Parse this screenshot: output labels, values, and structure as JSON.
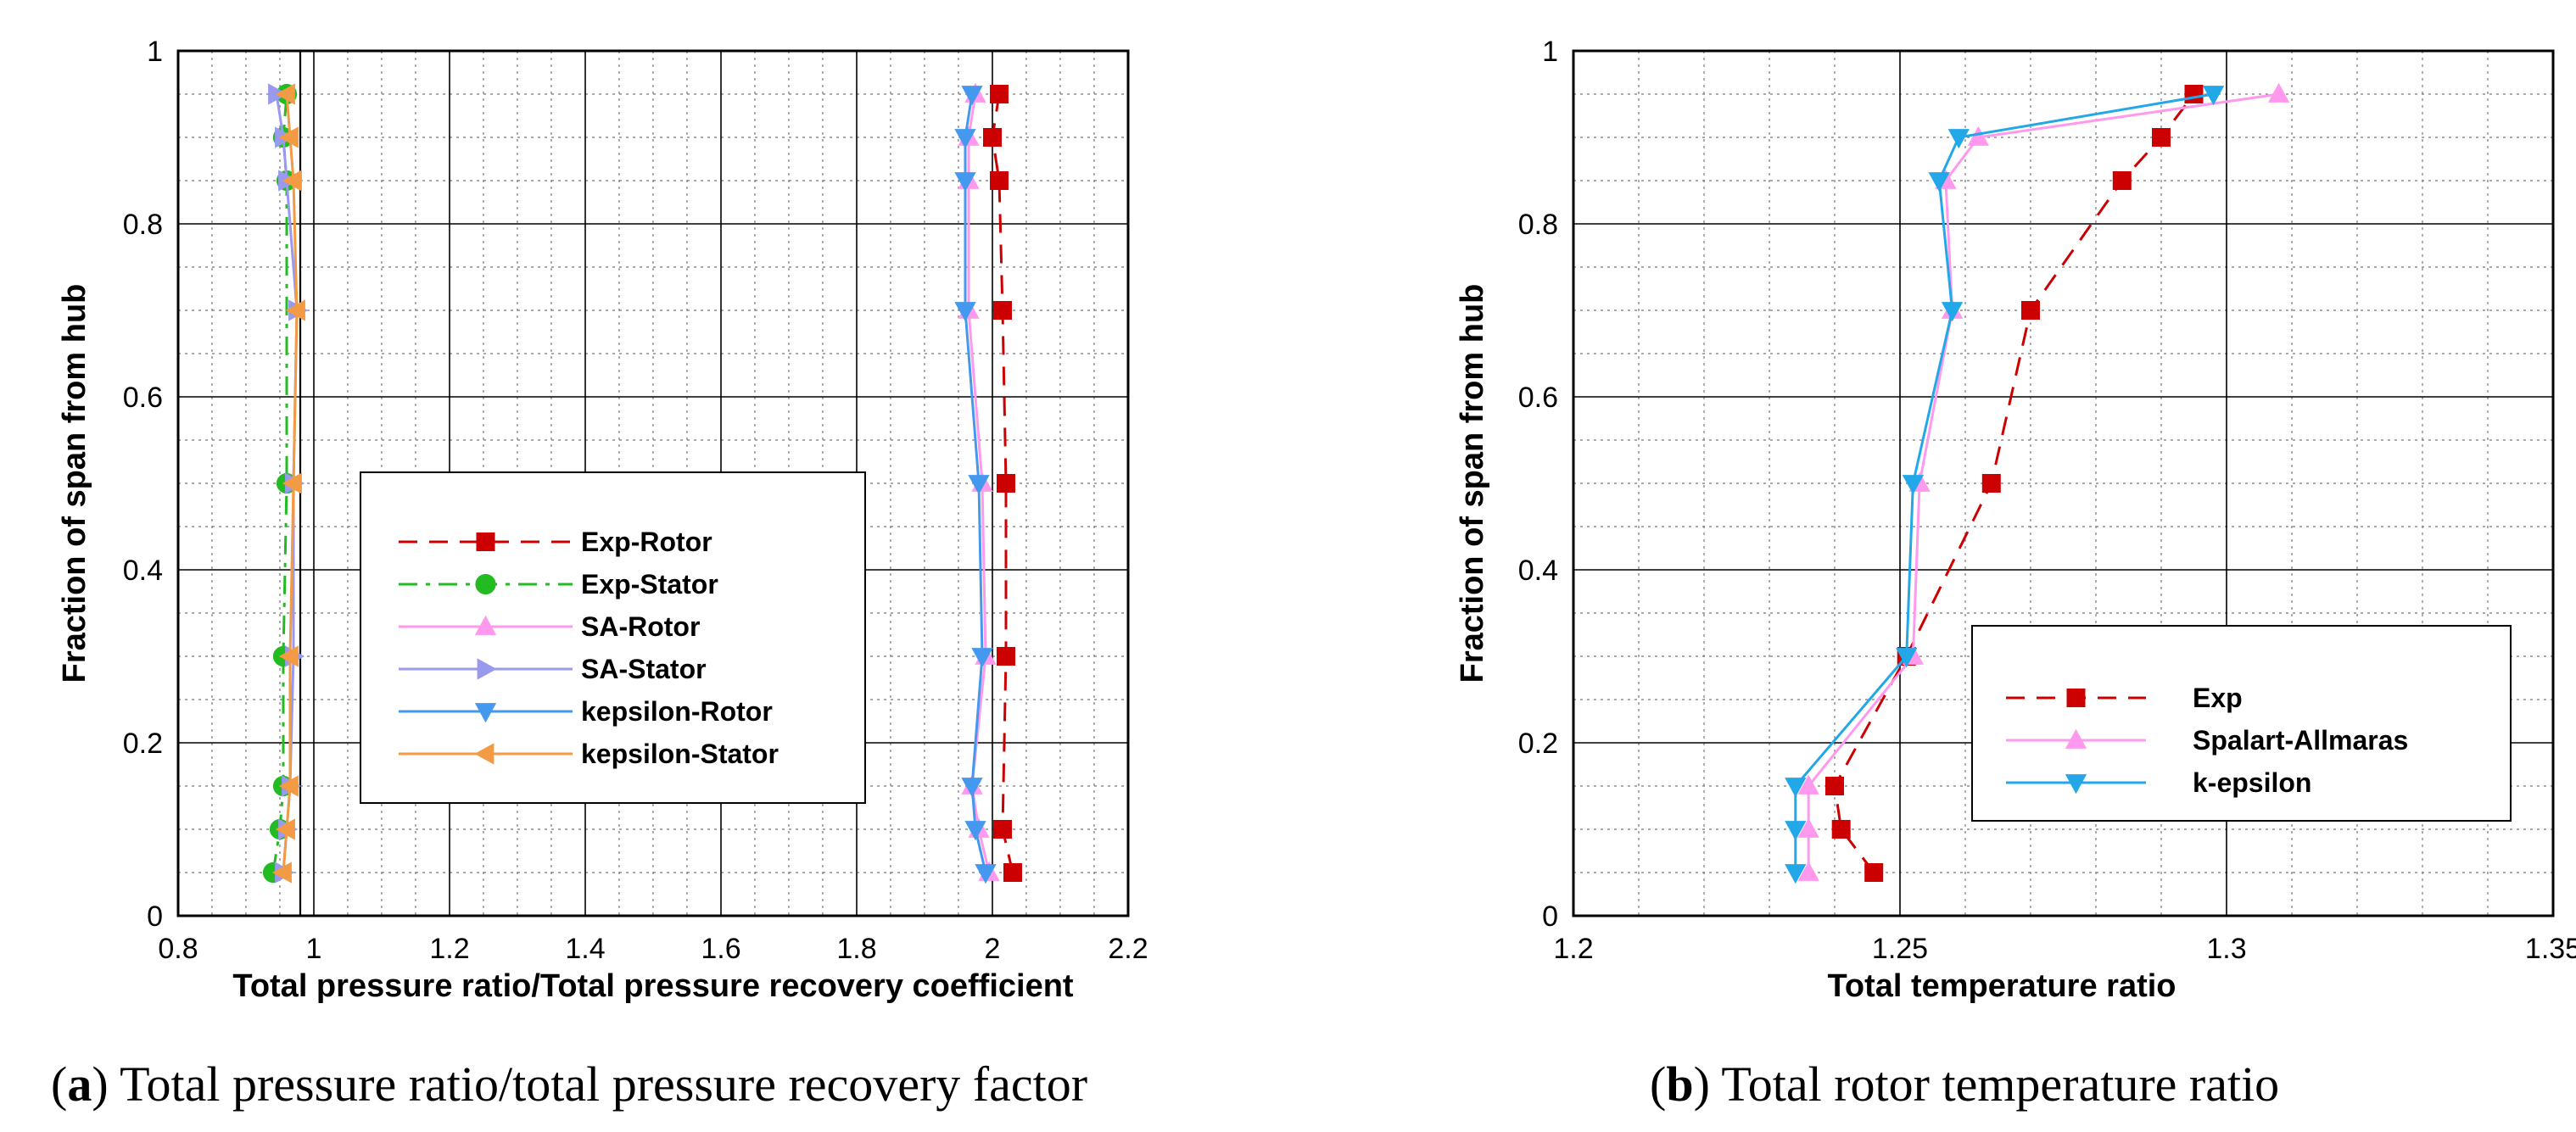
{
  "chart_data": [
    {
      "type": "line",
      "caption_letter": "a",
      "caption_text": ") Total pressure ratio/total pressure recovery factor",
      "caption_open": "(",
      "xlabel": "Total pressure ratio/Total pressure recovery coefficient",
      "ylabel": "Fraction of span from hub",
      "xlim": [
        0.8,
        2.2
      ],
      "ylim": [
        0,
        1
      ],
      "xticks": [
        0.8,
        1,
        1.2,
        1.4,
        1.6,
        1.8,
        2,
        2.2
      ],
      "xtick_labels": [
        "0.8",
        "1",
        "1.2",
        "1.4",
        "1.6",
        "1.8",
        "2",
        "2.2"
      ],
      "yticks": [
        0,
        0.2,
        0.4,
        0.6,
        0.8,
        1
      ],
      "ytick_labels": [
        "0",
        "0.2",
        "0.4",
        "0.6",
        "0.8",
        "1"
      ],
      "grid": true,
      "legend_position": "center",
      "series": [
        {
          "name": "Exp-Rotor",
          "color": "#cc0000",
          "marker": "square",
          "dash": "dashed",
          "x": [
            2.03,
            2.015,
            2.02,
            2.02,
            2.015,
            2.01,
            2.0,
            2.01
          ],
          "y": [
            0.05,
            0.1,
            0.3,
            0.5,
            0.7,
            0.85,
            0.9,
            0.95
          ]
        },
        {
          "name": "Exp-Stator",
          "color": "#22bb22",
          "marker": "circle",
          "dash": "dashdot",
          "x": [
            0.94,
            0.95,
            0.955,
            0.955,
            0.96,
            0.96,
            0.955,
            0.96
          ],
          "y": [
            0.05,
            0.1,
            0.15,
            0.3,
            0.5,
            0.85,
            0.9,
            0.95
          ]
        },
        {
          "name": "SA-Rotor",
          "color": "#ff99ee",
          "marker": "triangle-up",
          "dash": "solid",
          "x": [
            1.995,
            1.98,
            1.97,
            1.99,
            1.985,
            1.965,
            1.965,
            1.965,
            1.975
          ],
          "y": [
            0.05,
            0.1,
            0.15,
            0.3,
            0.5,
            0.7,
            0.85,
            0.9,
            0.95
          ]
        },
        {
          "name": "SA-Stator",
          "color": "#9999ee",
          "marker": "triangle-right",
          "dash": "solid",
          "x": [
            0.955,
            0.96,
            0.965,
            0.97,
            0.97,
            0.975,
            0.96,
            0.955,
            0.945
          ],
          "y": [
            0.05,
            0.1,
            0.15,
            0.3,
            0.5,
            0.7,
            0.85,
            0.9,
            0.95
          ]
        },
        {
          "name": "kepsilon-Rotor",
          "color": "#4499ee",
          "marker": "triangle-down",
          "dash": "solid",
          "x": [
            1.99,
            1.975,
            1.97,
            1.985,
            1.98,
            1.96,
            1.96,
            1.96,
            1.97
          ],
          "y": [
            0.05,
            0.1,
            0.15,
            0.3,
            0.5,
            0.7,
            0.85,
            0.9,
            0.95
          ]
        },
        {
          "name": "kepsilon-Stator",
          "color": "#f29a44",
          "marker": "triangle-left",
          "dash": "solid",
          "x": [
            0.955,
            0.96,
            0.965,
            0.965,
            0.97,
            0.975,
            0.97,
            0.965,
            0.96
          ],
          "y": [
            0.05,
            0.1,
            0.15,
            0.3,
            0.5,
            0.7,
            0.85,
            0.9,
            0.95
          ]
        }
      ],
      "ref_line_x": 0.98
    },
    {
      "type": "line",
      "caption_letter": "b",
      "caption_text": ") Total rotor temperature ratio",
      "caption_open": "(",
      "xlabel": "Total temperature ratio",
      "ylabel": "Fraction of span from hub",
      "xlim": [
        1.2,
        1.35
      ],
      "ylim": [
        0,
        1
      ],
      "xticks": [
        1.2,
        1.25,
        1.3,
        1.35
      ],
      "xtick_labels": [
        "1.2",
        "1.25",
        "1.3",
        "1.35"
      ],
      "yticks": [
        0,
        0.2,
        0.4,
        0.6,
        0.8,
        1
      ],
      "ytick_labels": [
        "0",
        "0.2",
        "0.4",
        "0.6",
        "0.8",
        "1"
      ],
      "grid": true,
      "legend_position": "bottom-right",
      "series": [
        {
          "name": "Exp",
          "color": "#cc0000",
          "marker": "square",
          "dash": "dashed",
          "x": [
            1.246,
            1.241,
            1.24,
            1.251,
            1.264,
            1.27,
            1.284,
            1.29,
            1.295
          ],
          "y": [
            0.05,
            0.1,
            0.15,
            0.3,
            0.5,
            0.7,
            0.85,
            0.9,
            0.95
          ]
        },
        {
          "name": "Spalart-Allmaras",
          "color": "#ff99ee",
          "marker": "triangle-up",
          "dash": "solid",
          "x": [
            1.236,
            1.236,
            1.236,
            1.252,
            1.253,
            1.258,
            1.257,
            1.262,
            1.308
          ],
          "y": [
            0.05,
            0.1,
            0.15,
            0.3,
            0.5,
            0.7,
            0.85,
            0.9,
            0.95
          ]
        },
        {
          "name": "k-epsilon",
          "color": "#22a8e8",
          "marker": "triangle-down",
          "dash": "solid",
          "x": [
            1.234,
            1.234,
            1.234,
            1.251,
            1.252,
            1.258,
            1.256,
            1.259,
            1.298
          ],
          "y": [
            0.05,
            0.1,
            0.15,
            0.3,
            0.5,
            0.7,
            0.85,
            0.9,
            0.95
          ]
        }
      ]
    }
  ]
}
